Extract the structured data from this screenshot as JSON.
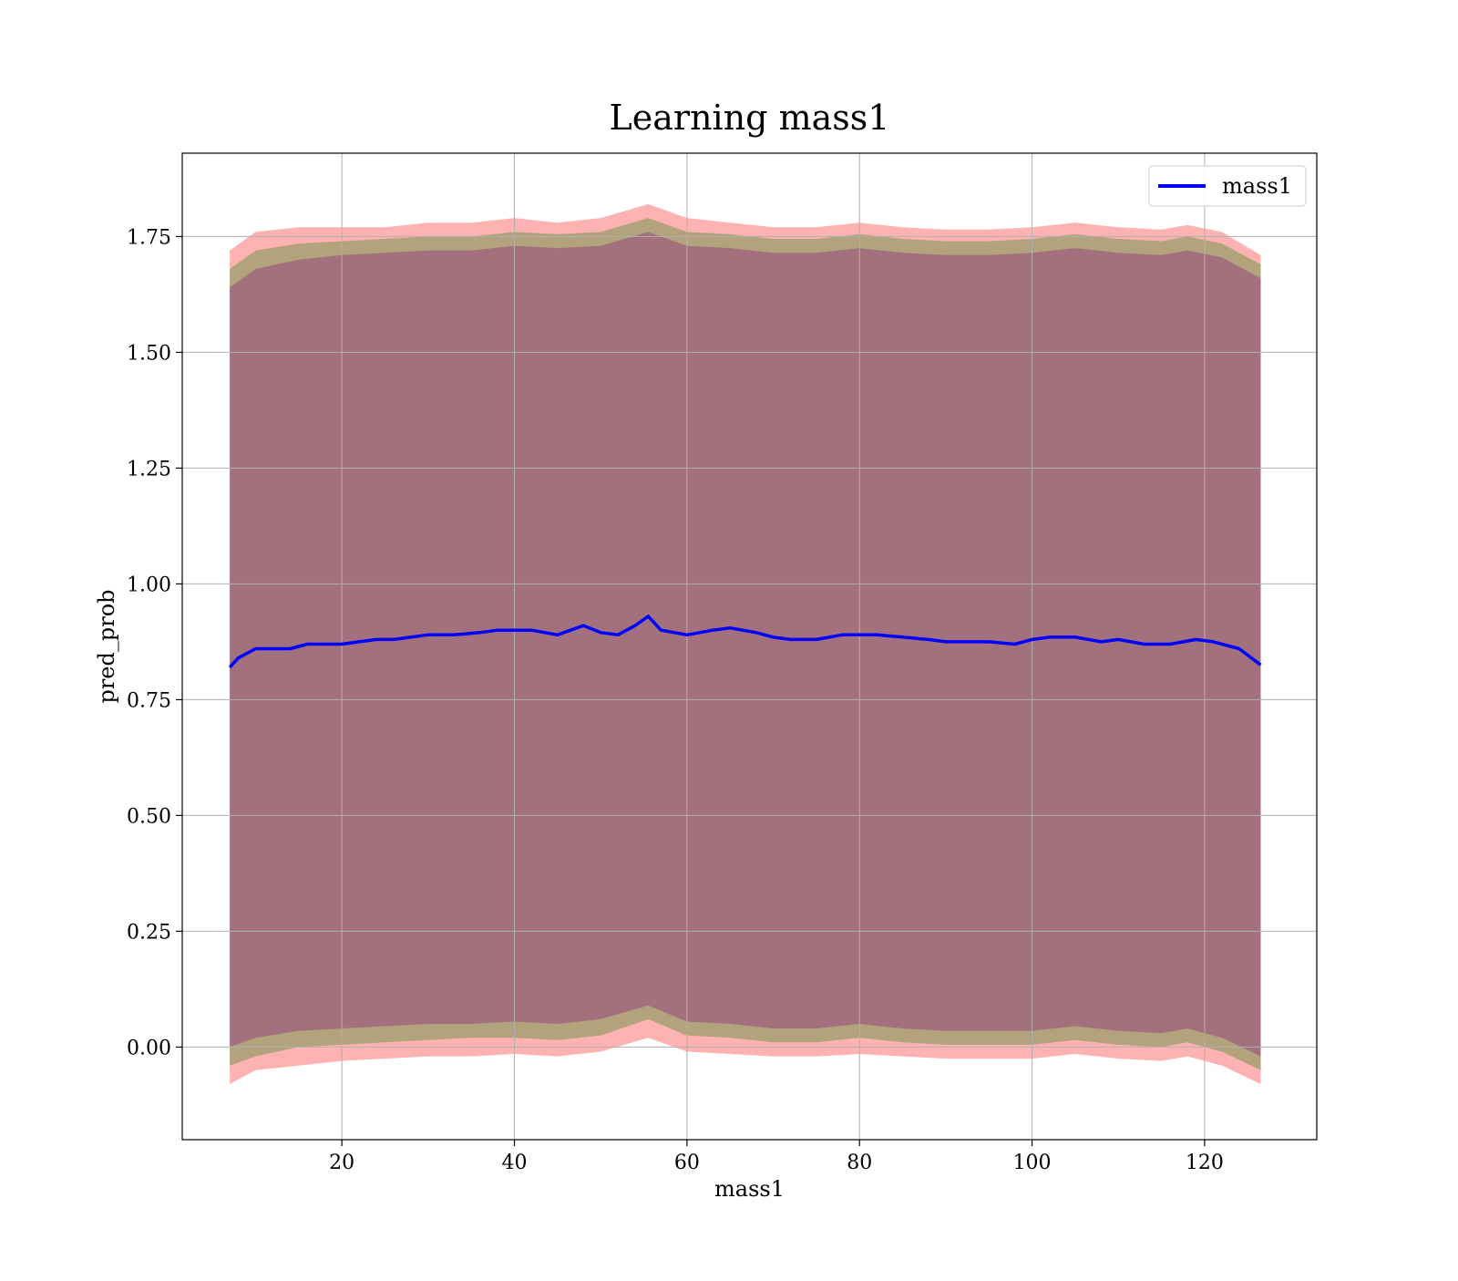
{
  "chart_data": {
    "type": "line",
    "title": "Learning mass1",
    "xlabel": "mass1",
    "ylabel": "pred_prob",
    "xlim": [
      1.5,
      133
    ],
    "ylim": [
      -0.2,
      1.93
    ],
    "xticks": [
      20,
      40,
      60,
      80,
      100,
      120
    ],
    "yticks": [
      0.0,
      0.25,
      0.5,
      0.75,
      1.0,
      1.25,
      1.5,
      1.75
    ],
    "ytick_labels": [
      "0.00",
      "0.25",
      "0.50",
      "0.75",
      "1.00",
      "1.25",
      "1.50",
      "1.75"
    ],
    "grid": true,
    "legend": {
      "placement": "top-right",
      "entries": [
        "mass1"
      ]
    },
    "series": [
      {
        "name": "mass1",
        "color": "#0000ff",
        "x": [
          7,
          8,
          9,
          10,
          12,
          14,
          16,
          18,
          20,
          22,
          24,
          26,
          28,
          30,
          33,
          36,
          38,
          40,
          42,
          45,
          48,
          50,
          52,
          54,
          55.5,
          57,
          60,
          63,
          65,
          68,
          70,
          72,
          75,
          78,
          80,
          82,
          85,
          88,
          90,
          95,
          98,
          100,
          102,
          105,
          108,
          110,
          113,
          116,
          119,
          121,
          124,
          126.5
        ],
        "y": [
          0.82,
          0.84,
          0.85,
          0.86,
          0.86,
          0.86,
          0.87,
          0.87,
          0.87,
          0.875,
          0.88,
          0.88,
          0.885,
          0.89,
          0.89,
          0.895,
          0.9,
          0.9,
          0.9,
          0.89,
          0.91,
          0.895,
          0.89,
          0.91,
          0.93,
          0.9,
          0.89,
          0.9,
          0.905,
          0.895,
          0.885,
          0.88,
          0.88,
          0.89,
          0.89,
          0.89,
          0.885,
          0.88,
          0.875,
          0.875,
          0.87,
          0.88,
          0.885,
          0.885,
          0.875,
          0.88,
          0.87,
          0.87,
          0.88,
          0.875,
          0.86,
          0.825
        ]
      }
    ],
    "bands": [
      {
        "fill": "#ff0000",
        "x": [
          7,
          10,
          15,
          20,
          25,
          30,
          35,
          40,
          45,
          50,
          55.5,
          60,
          65,
          70,
          75,
          80,
          85,
          90,
          95,
          100,
          105,
          110,
          115,
          118,
          122,
          126.5
        ],
        "upper": [
          1.72,
          1.76,
          1.77,
          1.77,
          1.77,
          1.78,
          1.78,
          1.79,
          1.78,
          1.79,
          1.82,
          1.79,
          1.78,
          1.77,
          1.77,
          1.78,
          1.77,
          1.765,
          1.765,
          1.77,
          1.78,
          1.77,
          1.765,
          1.775,
          1.76,
          1.71
        ],
        "lower": [
          -0.08,
          -0.05,
          -0.04,
          -0.03,
          -0.025,
          -0.02,
          -0.02,
          -0.015,
          -0.02,
          -0.01,
          0.02,
          -0.01,
          -0.015,
          -0.02,
          -0.02,
          -0.015,
          -0.02,
          -0.025,
          -0.025,
          -0.025,
          -0.015,
          -0.025,
          -0.03,
          -0.02,
          -0.04,
          -0.08
        ]
      },
      {
        "fill": "#008000",
        "x": [
          7,
          10,
          15,
          20,
          25,
          30,
          35,
          40,
          45,
          50,
          55.5,
          60,
          65,
          70,
          75,
          80,
          85,
          90,
          95,
          100,
          105,
          110,
          115,
          118,
          122,
          126.5
        ],
        "upper": [
          1.68,
          1.72,
          1.735,
          1.74,
          1.745,
          1.75,
          1.75,
          1.76,
          1.755,
          1.76,
          1.79,
          1.76,
          1.755,
          1.745,
          1.745,
          1.755,
          1.745,
          1.74,
          1.74,
          1.745,
          1.755,
          1.745,
          1.74,
          1.75,
          1.735,
          1.69
        ],
        "lower": [
          -0.04,
          -0.02,
          0.0,
          0.005,
          0.01,
          0.015,
          0.02,
          0.02,
          0.015,
          0.025,
          0.06,
          0.025,
          0.02,
          0.01,
          0.01,
          0.02,
          0.01,
          0.005,
          0.005,
          0.005,
          0.015,
          0.005,
          0.0,
          0.01,
          -0.01,
          -0.05
        ]
      },
      {
        "fill": "#800080",
        "x": [
          7,
          10,
          15,
          20,
          25,
          30,
          35,
          40,
          45,
          50,
          55.5,
          60,
          65,
          70,
          75,
          80,
          85,
          90,
          95,
          100,
          105,
          110,
          115,
          118,
          122,
          126.5
        ],
        "upper": [
          1.64,
          1.68,
          1.7,
          1.71,
          1.715,
          1.72,
          1.72,
          1.73,
          1.725,
          1.73,
          1.76,
          1.73,
          1.725,
          1.715,
          1.715,
          1.725,
          1.715,
          1.71,
          1.71,
          1.715,
          1.725,
          1.715,
          1.71,
          1.72,
          1.705,
          1.66
        ],
        "lower": [
          0.0,
          0.02,
          0.035,
          0.04,
          0.045,
          0.05,
          0.05,
          0.055,
          0.05,
          0.06,
          0.09,
          0.055,
          0.05,
          0.04,
          0.04,
          0.05,
          0.04,
          0.035,
          0.035,
          0.035,
          0.045,
          0.035,
          0.03,
          0.04,
          0.02,
          -0.02
        ]
      }
    ]
  }
}
